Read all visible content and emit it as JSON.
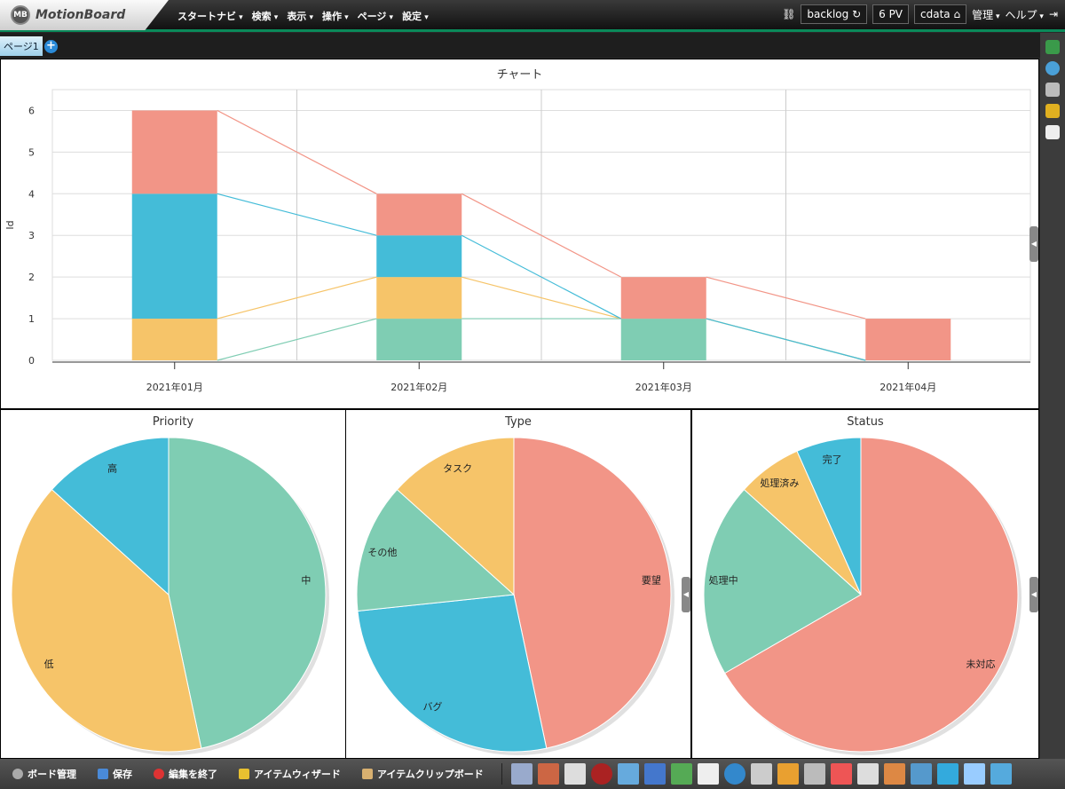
{
  "app": {
    "logo_mark": "MB",
    "logo_text": "MotionBoard"
  },
  "menu": [
    "スタートナビ",
    "検索",
    "表示",
    "操作",
    "ページ",
    "設定"
  ],
  "right_menu": {
    "board": "backlog",
    "pv": "6 PV",
    "user": "cdata",
    "admin": "管理",
    "help": "ヘルプ"
  },
  "tabs": {
    "page1": "ページ1",
    "add": "+"
  },
  "colors": {
    "red": "#f29587",
    "blue": "#44bcd8",
    "yellow": "#f6c469",
    "green": "#7fcdb3"
  },
  "chart_data": [
    {
      "type": "bar",
      "stacked": true,
      "title": "チャート",
      "ylabel": "Id",
      "xlabel": "",
      "ylim": [
        0,
        6.5
      ],
      "yticks": [
        0,
        1,
        2,
        3,
        4,
        5,
        6
      ],
      "categories": [
        "2021年01月",
        "2021年02月",
        "2021年03月",
        "2021年04月"
      ],
      "series": [
        {
          "name": "green",
          "color": "#7fcdb3",
          "values": [
            0,
            1,
            1,
            0
          ]
        },
        {
          "name": "yellow",
          "color": "#f6c469",
          "values": [
            1,
            1,
            0,
            0
          ]
        },
        {
          "name": "blue",
          "color": "#44bcd8",
          "values": [
            3,
            1,
            0,
            0
          ]
        },
        {
          "name": "red",
          "color": "#f29587",
          "values": [
            2,
            1,
            1,
            1
          ]
        }
      ]
    },
    {
      "type": "pie",
      "title": "Priority",
      "slices": [
        {
          "label": "中",
          "value": 7,
          "color": "#7fcdb3"
        },
        {
          "label": "低",
          "value": 6,
          "color": "#f6c469"
        },
        {
          "label": "高",
          "value": 2,
          "color": "#44bcd8"
        }
      ]
    },
    {
      "type": "pie",
      "title": "Type",
      "slices": [
        {
          "label": "要望",
          "value": 7,
          "color": "#f29587"
        },
        {
          "label": "バグ",
          "value": 4,
          "color": "#44bcd8"
        },
        {
          "label": "その他",
          "value": 2,
          "color": "#7fcdb3"
        },
        {
          "label": "タスク",
          "value": 2,
          "color": "#f6c469"
        }
      ]
    },
    {
      "type": "pie",
      "title": "Status",
      "slices": [
        {
          "label": "未対応",
          "value": 10,
          "color": "#f29587"
        },
        {
          "label": "処理中",
          "value": 3,
          "color": "#7fcdb3"
        },
        {
          "label": "処理済み",
          "value": 1,
          "color": "#f6c469"
        },
        {
          "label": "完了",
          "value": 1,
          "color": "#44bcd8"
        }
      ]
    }
  ],
  "bottom": {
    "board_manage": "ボード管理",
    "save": "保存",
    "end_edit": "編集を終了",
    "wizard": "アイテムウィザード",
    "clipboard": "アイテムクリップボード"
  }
}
